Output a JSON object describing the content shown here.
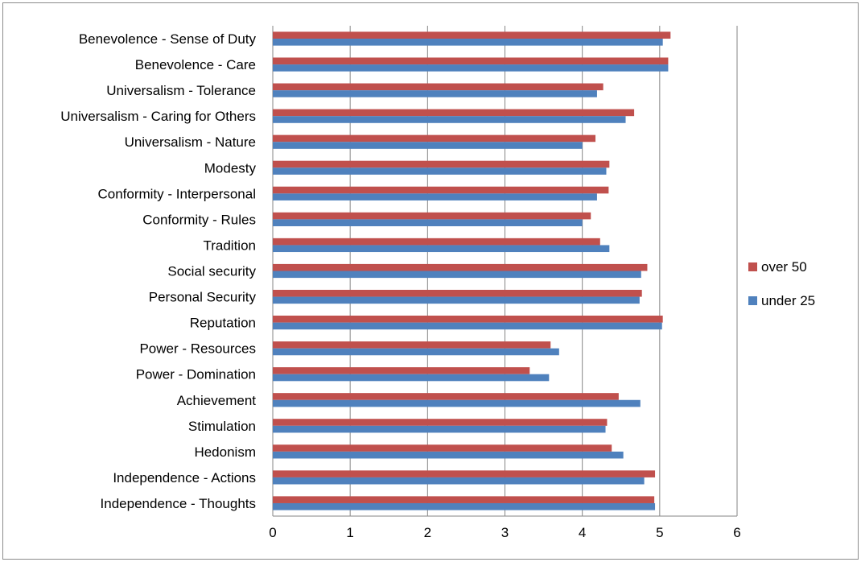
{
  "chart_data": {
    "type": "bar",
    "orientation": "horizontal",
    "title": "",
    "xlabel": "",
    "ylabel": "",
    "xlim": [
      0,
      6
    ],
    "x_ticks": [
      0,
      1,
      2,
      3,
      4,
      5,
      6
    ],
    "grid": "vertical major gridlines",
    "legend_position": "right",
    "categories": [
      "Benevolence - Sense of Duty",
      "Benevolence - Care",
      "Universalism - Tolerance",
      "Universalism - Caring for Others",
      "Universalism - Nature",
      "Modesty",
      "Conformity - Interpersonal",
      "Conformity - Rules",
      "Tradition",
      "Social security",
      "Personal Security",
      "Reputation",
      "Power - Resources",
      "Power - Domination",
      "Achievement",
      "Stimulation",
      "Hedonism",
      "Independence - Actions",
      "Independence - Thoughts"
    ],
    "series": [
      {
        "name": "over 50",
        "color": "#c0504d",
        "values": [
          5.14,
          5.11,
          4.27,
          4.67,
          4.17,
          4.35,
          4.34,
          4.11,
          4.23,
          4.84,
          4.77,
          5.04,
          3.59,
          3.32,
          4.47,
          4.32,
          4.38,
          4.94,
          4.93
        ]
      },
      {
        "name": "under 25",
        "color": "#4f81bd",
        "values": [
          5.04,
          5.11,
          4.19,
          4.56,
          4.0,
          4.31,
          4.19,
          4.0,
          4.35,
          4.76,
          4.74,
          5.03,
          3.7,
          3.57,
          4.75,
          4.3,
          4.53,
          4.8,
          4.94
        ]
      }
    ]
  }
}
